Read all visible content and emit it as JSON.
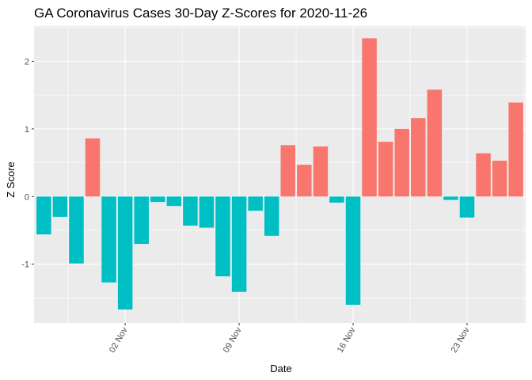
{
  "chart_data": {
    "type": "bar",
    "title": "GA Coronavirus Cases 30-Day Z-Scores for 2020-11-26",
    "xlabel": "Date",
    "ylabel": "Z Score",
    "x_ticks": [
      "02 Nov",
      "09 Nov",
      "16 Nov",
      "23 Nov"
    ],
    "y_ticks": [
      -1,
      0,
      1,
      2
    ],
    "ylim": [
      -1.87,
      2.52
    ],
    "grid": true,
    "legend": "none",
    "colors": {
      "positive": "#F8766D",
      "negative": "#00BFC4",
      "panel": "#EBEBEB",
      "grid": "#FFFFFF"
    },
    "categories": [
      "2020-10-28",
      "2020-10-29",
      "2020-10-30",
      "2020-10-31",
      "2020-11-01",
      "2020-11-02",
      "2020-11-03",
      "2020-11-04",
      "2020-11-05",
      "2020-11-06",
      "2020-11-07",
      "2020-11-08",
      "2020-11-09",
      "2020-11-10",
      "2020-11-11",
      "2020-11-12",
      "2020-11-13",
      "2020-11-14",
      "2020-11-15",
      "2020-11-16",
      "2020-11-17",
      "2020-11-18",
      "2020-11-19",
      "2020-11-20",
      "2020-11-21",
      "2020-11-22",
      "2020-11-23",
      "2020-11-24",
      "2020-11-25",
      "2020-11-26"
    ],
    "values": [
      -0.56,
      -0.3,
      -0.99,
      0.86,
      -1.27,
      -1.67,
      -0.7,
      -0.08,
      -0.14,
      -0.43,
      -0.46,
      -1.18,
      -1.41,
      -0.21,
      -0.58,
      0.76,
      0.47,
      0.74,
      -0.09,
      -1.6,
      2.34,
      0.81,
      1.0,
      1.16,
      1.58,
      -0.05,
      -0.31,
      0.64,
      0.53,
      1.39
    ]
  }
}
